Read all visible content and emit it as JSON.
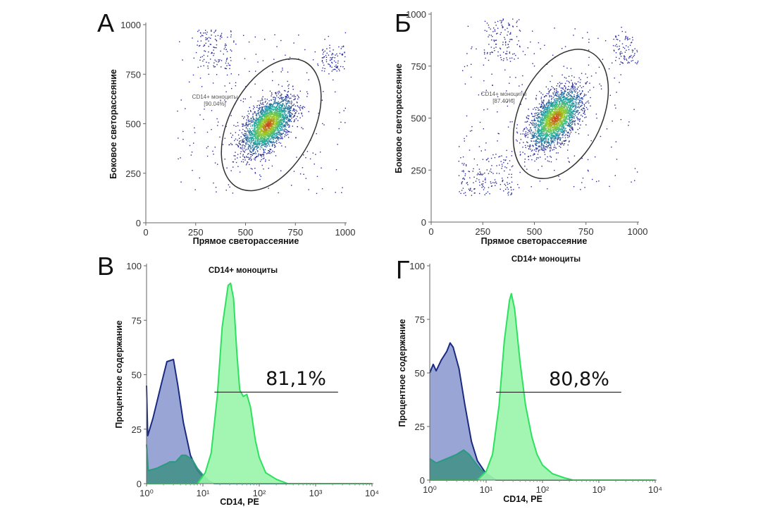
{
  "chart_data": [
    {
      "panel_letter": "А",
      "type": "scatter",
      "xlabel": "Прямое светорассеяние",
      "ylabel": "Боковое светорассеяние",
      "xlim": [
        0,
        1000
      ],
      "ylim": [
        0,
        1000
      ],
      "xticks": [
        "0",
        "250",
        "500",
        "750",
        "1000"
      ],
      "yticks": [
        "0",
        "250",
        "500",
        "750",
        "1000"
      ],
      "cluster_center": [
        610,
        495
      ],
      "gate": {
        "name": "CD14+ моноциты",
        "value": "[90.04%]",
        "center": [
          629,
          495
        ],
        "semi_axes": [
          120,
          360
        ],
        "rotation_deg": 28
      },
      "colors": {
        "low": "#2a2a9a",
        "mid": "#22b0a0",
        "high": "#d83020"
      }
    },
    {
      "panel_letter": "Б",
      "type": "scatter",
      "xlabel": "Прямое светорассеяние",
      "ylabel": "Боковое светорассеяние",
      "xlim": [
        0,
        1000
      ],
      "ylim": [
        0,
        1000
      ],
      "xticks": [
        "0",
        "250",
        "500",
        "750",
        "1000"
      ],
      "yticks": [
        "0",
        "250",
        "500",
        "750",
        "1000"
      ],
      "cluster_center": [
        600,
        500
      ],
      "gate": {
        "name": "CD14+ моноциты",
        "value": "[87.40%]",
        "center": [
          628,
          520
        ],
        "semi_axes": [
          115,
          330
        ],
        "rotation_deg": 25
      },
      "colors": {
        "low": "#2a2a9a",
        "mid": "#22b0a0",
        "high": "#d83020"
      }
    },
    {
      "panel_letter": "В",
      "type": "area",
      "title": "CD14+ моноциты",
      "xlabel": "CD14, PE",
      "ylabel": "Процентное содержание",
      "xscale": "log",
      "xlim": [
        1,
        10000
      ],
      "ylim": [
        0,
        100
      ],
      "xticks": [
        "10⁰",
        "10¹",
        "10²",
        "10³",
        "10⁴"
      ],
      "yticks": [
        "0",
        "25",
        "50",
        "75",
        "100"
      ],
      "marker": {
        "label": "81,1%",
        "y": 42,
        "x_range": [
          16,
          2500
        ]
      },
      "series": [
        {
          "color": "#1a2a80",
          "fill": "#8e9cd0",
          "points": [
            [
              1,
              45
            ],
            [
              1.05,
              22
            ],
            [
              1.3,
              30
            ],
            [
              1.8,
              45
            ],
            [
              2.3,
              56
            ],
            [
              3.0,
              57
            ],
            [
              3.6,
              45
            ],
            [
              4.5,
              28
            ],
            [
              6,
              13
            ],
            [
              8,
              6
            ],
            [
              11,
              2
            ],
            [
              16,
              0
            ],
            [
              10000,
              0
            ]
          ]
        },
        {
          "color": "#2a9a80",
          "fill": "#3f8f86",
          "points": [
            [
              1,
              18
            ],
            [
              1.07,
              6
            ],
            [
              1.5,
              7
            ],
            [
              2.2,
              9
            ],
            [
              2.6,
              10
            ],
            [
              3.3,
              10
            ],
            [
              4.2,
              13
            ],
            [
              5,
              13
            ],
            [
              6.5,
              11
            ],
            [
              8,
              7
            ],
            [
              10,
              4
            ],
            [
              13,
              1
            ],
            [
              16,
              0
            ],
            [
              10000,
              0
            ]
          ]
        },
        {
          "color": "#2ee060",
          "fill": "#98f5a8",
          "points": [
            [
              1,
              0
            ],
            [
              8,
              0
            ],
            [
              11,
              5
            ],
            [
              14,
              14
            ],
            [
              18,
              40
            ],
            [
              22,
              72
            ],
            [
              28,
              91
            ],
            [
              31,
              92
            ],
            [
              35,
              85
            ],
            [
              40,
              60
            ],
            [
              45,
              43
            ],
            [
              52,
              40
            ],
            [
              60,
              41
            ],
            [
              70,
              35
            ],
            [
              85,
              20
            ],
            [
              100,
              12
            ],
            [
              130,
              5
            ],
            [
              200,
              2
            ],
            [
              320,
              0
            ],
            [
              10000,
              0
            ]
          ]
        }
      ]
    },
    {
      "panel_letter": "Г",
      "type": "area",
      "title": "CD14+ моноциты",
      "xlabel": "CD14, PE",
      "ylabel": "Процентное содержание",
      "xscale": "log",
      "xlim": [
        1,
        10000
      ],
      "ylim": [
        0,
        100
      ],
      "xticks": [
        "10⁰",
        "10¹",
        "10²",
        "10³",
        "10⁴"
      ],
      "yticks": [
        "0",
        "25",
        "50",
        "75",
        "100"
      ],
      "marker": {
        "label": "80,8%",
        "y": 41,
        "x_range": [
          15,
          2500
        ]
      },
      "series": [
        {
          "color": "#1a2a80",
          "fill": "#8e9cd0",
          "points": [
            [
              1,
              50
            ],
            [
              1.15,
              54
            ],
            [
              1.3,
              51
            ],
            [
              1.6,
              56
            ],
            [
              2.0,
              60
            ],
            [
              2.3,
              64
            ],
            [
              2.6,
              62
            ],
            [
              3.3,
              52
            ],
            [
              4.2,
              35
            ],
            [
              5.5,
              18
            ],
            [
              7,
              9
            ],
            [
              10,
              3
            ],
            [
              15,
              0
            ],
            [
              10000,
              0
            ]
          ]
        },
        {
          "color": "#2a9a80",
          "fill": "#3f8f86",
          "points": [
            [
              1,
              10
            ],
            [
              1.3,
              8
            ],
            [
              2,
              10
            ],
            [
              3,
              12
            ],
            [
              4,
              14
            ],
            [
              5,
              12
            ],
            [
              6.5,
              8
            ],
            [
              8,
              5
            ],
            [
              11,
              2
            ],
            [
              15,
              0
            ],
            [
              10000,
              0
            ]
          ]
        },
        {
          "color": "#2ee060",
          "fill": "#98f5a8",
          "points": [
            [
              1,
              0
            ],
            [
              7,
              0
            ],
            [
              10,
              4
            ],
            [
              13,
              12
            ],
            [
              17,
              35
            ],
            [
              21,
              65
            ],
            [
              26,
              84
            ],
            [
              28,
              87
            ],
            [
              32,
              80
            ],
            [
              40,
              55
            ],
            [
              50,
              35
            ],
            [
              65,
              20
            ],
            [
              80,
              12
            ],
            [
              100,
              7
            ],
            [
              150,
              3
            ],
            [
              250,
              1
            ],
            [
              350,
              0
            ],
            [
              10000,
              0
            ]
          ]
        }
      ]
    }
  ]
}
